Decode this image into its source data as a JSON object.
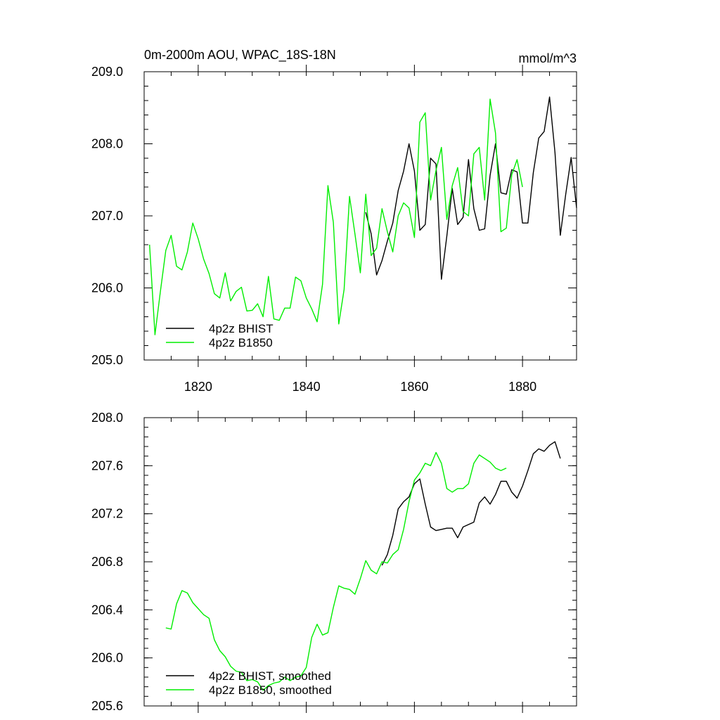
{
  "chart_data": [
    {
      "type": "line",
      "title": "0m-2000m AOU, WPAC_18S-18N",
      "units": "mmol/m^3",
      "xlim": [
        1810,
        1890
      ],
      "ylim": [
        205.0,
        209.0
      ],
      "xticks": [
        1820,
        1840,
        1860,
        1880
      ],
      "xtick_labels": [
        "1820",
        "1840",
        "1860",
        "1880"
      ],
      "yticks": [
        205.0,
        206.0,
        207.0,
        208.0,
        209.0
      ],
      "ytick_labels": [
        "205.0",
        "206.0",
        "207.0",
        "208.0",
        "209.0"
      ],
      "grid": false,
      "legend": "bottom-left",
      "series": [
        {
          "name": "4p2z BHIST",
          "color": "#000000",
          "x": [
            1851,
            1852,
            1853,
            1854,
            1855,
            1856,
            1857,
            1858,
            1859,
            1860,
            1861,
            1862,
            1863,
            1864,
            1865,
            1866,
            1867,
            1868,
            1869,
            1870,
            1871,
            1872,
            1873,
            1874,
            1875,
            1876,
            1877,
            1878,
            1879,
            1880,
            1881,
            1882,
            1883,
            1884,
            1885,
            1886,
            1887,
            1888,
            1889,
            1890
          ],
          "y": [
            207.05,
            206.75,
            206.18,
            206.38,
            206.65,
            206.9,
            207.35,
            207.62,
            208.0,
            207.62,
            206.8,
            206.88,
            207.8,
            207.72,
            206.12,
            206.72,
            207.38,
            206.88,
            206.98,
            207.78,
            207.1,
            206.8,
            206.82,
            207.56,
            208.0,
            207.32,
            207.3,
            207.64,
            207.61,
            206.9,
            206.9,
            207.6,
            208.08,
            208.17,
            208.65,
            207.88,
            206.73,
            207.3,
            207.81,
            207.11
          ]
        },
        {
          "name": "4p2z B1850",
          "color": "#00ee00",
          "x": [
            1811,
            1812,
            1813,
            1814,
            1815,
            1816,
            1817,
            1818,
            1819,
            1820,
            1821,
            1822,
            1823,
            1824,
            1825,
            1826,
            1827,
            1828,
            1829,
            1830,
            1831,
            1832,
            1833,
            1834,
            1835,
            1836,
            1837,
            1838,
            1839,
            1840,
            1841,
            1842,
            1843,
            1844,
            1845,
            1846,
            1847,
            1848,
            1849,
            1850,
            1851,
            1852,
            1853,
            1854,
            1855,
            1856,
            1857,
            1858,
            1859,
            1860,
            1861,
            1862,
            1863,
            1864,
            1865,
            1866,
            1867,
            1868,
            1869,
            1870,
            1871,
            1872,
            1873,
            1874,
            1875,
            1876,
            1877,
            1878,
            1879,
            1880
          ],
          "y": [
            206.6,
            205.35,
            205.95,
            206.52,
            206.73,
            206.3,
            206.25,
            206.5,
            206.9,
            206.68,
            206.4,
            206.2,
            205.92,
            205.86,
            206.21,
            205.82,
            205.95,
            206.01,
            205.68,
            205.69,
            205.78,
            205.6,
            206.16,
            205.57,
            205.55,
            205.72,
            205.72,
            206.15,
            206.1,
            205.86,
            205.71,
            205.53,
            206.05,
            207.42,
            206.91,
            205.5,
            205.98,
            207.27,
            206.75,
            206.21,
            207.3,
            206.45,
            206.55,
            207.1,
            206.78,
            206.5,
            207.0,
            207.18,
            207.11,
            206.7,
            208.3,
            208.43,
            207.22,
            207.63,
            207.95,
            206.95,
            207.42,
            207.67,
            207.06,
            207.0,
            207.86,
            207.95,
            207.22,
            208.62,
            208.15,
            206.78,
            206.83,
            207.57,
            207.78,
            207.4
          ]
        }
      ],
      "legend_labels": [
        "4p2z BHIST",
        "4p2z B1850"
      ]
    },
    {
      "type": "line",
      "title": "",
      "xlim": [
        1810,
        1890
      ],
      "ylim": [
        205.6,
        208.0
      ],
      "xticks": [
        1820,
        1840,
        1860,
        1880
      ],
      "yticks": [
        205.6,
        206.0,
        206.4,
        206.8,
        207.2,
        207.6,
        208.0
      ],
      "ytick_labels": [
        "205.6",
        "206.0",
        "206.4",
        "206.8",
        "207.2",
        "207.6",
        "208.0"
      ],
      "grid": false,
      "legend": "bottom-left",
      "series": [
        {
          "name": "4p2z BHIST, smoothed",
          "color": "#000000",
          "x": [
            1854,
            1855,
            1856,
            1857,
            1858,
            1859,
            1860,
            1861,
            1862,
            1863,
            1864,
            1865,
            1866,
            1867,
            1868,
            1869,
            1870,
            1871,
            1872,
            1873,
            1874,
            1875,
            1876,
            1877,
            1878,
            1879,
            1880,
            1881,
            1882,
            1883,
            1884,
            1885,
            1886,
            1887
          ],
          "y": [
            206.77,
            206.86,
            207.02,
            207.24,
            207.3,
            207.34,
            207.45,
            207.49,
            207.28,
            207.09,
            207.06,
            207.07,
            207.08,
            207.08,
            207.0,
            207.09,
            207.11,
            207.13,
            207.29,
            207.34,
            207.28,
            207.36,
            207.47,
            207.47,
            207.38,
            207.33,
            207.43,
            207.56,
            207.7,
            207.74,
            207.72,
            207.77,
            207.8,
            207.66
          ]
        },
        {
          "name": "4p2z B1850, smoothed",
          "color": "#00ee00",
          "x": [
            1814,
            1815,
            1816,
            1817,
            1818,
            1819,
            1820,
            1821,
            1822,
            1823,
            1824,
            1825,
            1826,
            1827,
            1828,
            1829,
            1830,
            1831,
            1832,
            1833,
            1834,
            1835,
            1836,
            1837,
            1838,
            1839,
            1840,
            1841,
            1842,
            1843,
            1844,
            1845,
            1846,
            1847,
            1848,
            1849,
            1850,
            1851,
            1852,
            1853,
            1854,
            1855,
            1856,
            1857,
            1858,
            1859,
            1860,
            1861,
            1862,
            1863,
            1864,
            1865,
            1866,
            1867,
            1868,
            1869,
            1870,
            1871,
            1872,
            1873,
            1874,
            1875,
            1876,
            1877
          ],
          "y": [
            206.25,
            206.24,
            206.45,
            206.56,
            206.54,
            206.46,
            206.41,
            206.36,
            206.33,
            206.15,
            206.06,
            206.01,
            205.93,
            205.89,
            205.88,
            205.81,
            205.82,
            205.8,
            205.73,
            205.77,
            205.79,
            205.8,
            205.84,
            205.81,
            205.84,
            205.85,
            205.92,
            206.17,
            206.28,
            206.19,
            206.21,
            206.42,
            206.6,
            206.58,
            206.57,
            206.53,
            206.66,
            206.81,
            206.73,
            206.7,
            206.8,
            206.79,
            206.86,
            206.9,
            207.07,
            207.3,
            207.48,
            207.54,
            207.62,
            207.6,
            207.71,
            207.62,
            207.41,
            207.38,
            207.41,
            207.41,
            207.45,
            207.62,
            207.69,
            207.66,
            207.63,
            207.58,
            207.56,
            207.58
          ]
        }
      ],
      "legend_labels": [
        "4p2z BHIST, smoothed",
        "4p2z B1850, smoothed"
      ]
    }
  ]
}
